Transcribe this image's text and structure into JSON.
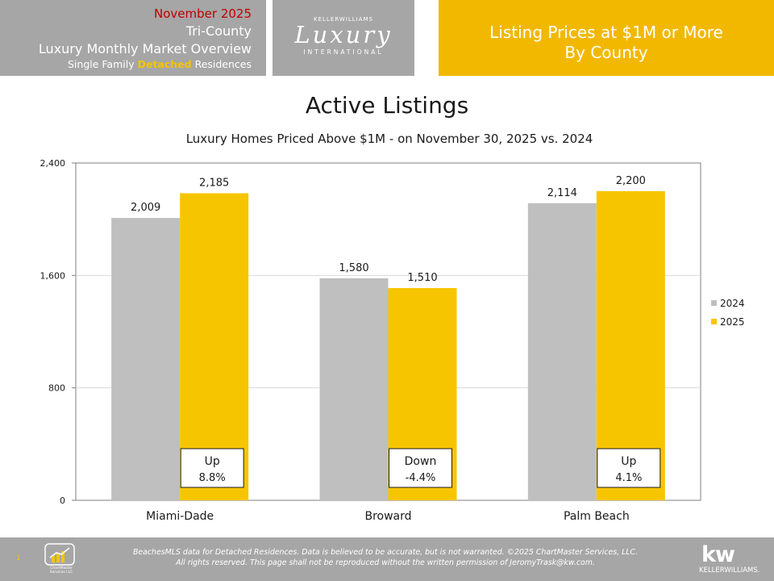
{
  "header": {
    "date": "November 2025",
    "region": "Tri-County",
    "overview": "Luxury Monthly Market Overview",
    "subtitle_before": "Single Family ",
    "subtitle_highlight": "Detached",
    "subtitle_after": " Residences",
    "logo_brand": "KELLERWILLIAMS",
    "logo_script": "Luxury",
    "logo_international": "INTERNATIONAL",
    "right_line1": "Listing Prices at $1M or More",
    "right_line2": "By County"
  },
  "chart_data": {
    "type": "bar",
    "title": "Active Listings",
    "subtitle": "Luxury Homes Priced Above $1M - on November 30,  2025 vs. 2024",
    "categories": [
      "Miami-Dade",
      "Broward",
      "Palm Beach"
    ],
    "series": [
      {
        "name": "2024",
        "color": "#bfbfbf",
        "values": [
          2009,
          1580,
          2114
        ],
        "labels": [
          "2,009",
          "1,580",
          "2,114"
        ]
      },
      {
        "name": "2025",
        "color": "#f7c500",
        "values": [
          2185,
          1510,
          2200
        ],
        "labels": [
          "2,185",
          "1,510",
          "2,200"
        ]
      }
    ],
    "ylim": [
      0,
      2400
    ],
    "yticks": [
      0,
      800,
      1600,
      2400
    ],
    "ytick_labels": [
      "0",
      "800",
      "1,600",
      "2,400"
    ],
    "grid": true,
    "legend": "right",
    "annotations": [
      {
        "category": "Miami-Dade",
        "direction": "Up",
        "change": "8.8%"
      },
      {
        "category": "Broward",
        "direction": "Down",
        "change": "-4.4%"
      },
      {
        "category": "Palm Beach",
        "direction": "Up",
        "change": "4.1%"
      }
    ]
  },
  "footer": {
    "page_number": "1",
    "line1": "BeachesMLS data for Detached Residences.  Data is believed to be accurate, but is not warranted.  ©2025 ChartMaster Services, LLC.",
    "line2": "All rights reserved. This page shall not be reproduced without the written permission of JeromyTrask@kw.com.",
    "chartmaster_logo_text": "ChartMaster Services LLC",
    "kw_mark": "kw",
    "kw_name": "KELLERWILLIAMS."
  },
  "colors": {
    "header_gray": "#a6a6a6",
    "brand_gold": "#f2b800",
    "bar_2024": "#bfbfbf",
    "bar_2025": "#f7c500",
    "date_red": "#c00000"
  }
}
